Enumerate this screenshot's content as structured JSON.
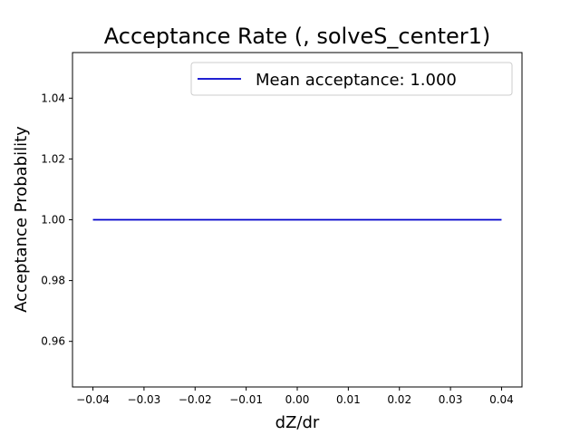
{
  "chart_data": {
    "type": "line",
    "title": "Acceptance Rate (, solveS_center1)",
    "xlabel": "dZ/dr",
    "ylabel": "Acceptance Probability",
    "xlim": [
      -0.044,
      0.044
    ],
    "ylim": [
      0.945,
      1.055
    ],
    "xticks": [
      -0.04,
      -0.03,
      -0.02,
      -0.01,
      0.0,
      0.01,
      0.02,
      0.03,
      0.04
    ],
    "xtick_labels": [
      "−0.04",
      "−0.03",
      "−0.02",
      "−0.01",
      "0.00",
      "0.01",
      "0.02",
      "0.03",
      "0.04"
    ],
    "yticks": [
      0.96,
      0.98,
      1.0,
      1.02,
      1.04
    ],
    "ytick_labels": [
      "0.96",
      "0.98",
      "1.00",
      "1.02",
      "1.04"
    ],
    "grid": false,
    "legend_position": "top-right",
    "series": [
      {
        "name": "Mean acceptance: 1.000",
        "color": "#0000cc",
        "x": [
          -0.04,
          0.04
        ],
        "y": [
          1.0,
          1.0
        ]
      }
    ]
  }
}
